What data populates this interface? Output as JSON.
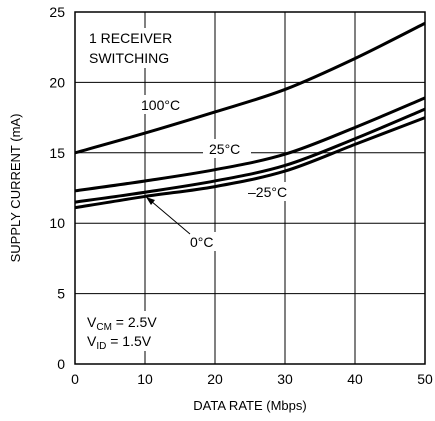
{
  "chart_data": {
    "type": "line",
    "xlabel": "DATA RATE (Mbps)",
    "ylabel": "SUPPLY CURRENT (mA)",
    "xlim": [
      0,
      50
    ],
    "ylim": [
      0,
      25
    ],
    "x_ticks": [
      0,
      10,
      20,
      30,
      40,
      50
    ],
    "y_ticks": [
      0,
      5,
      10,
      15,
      20,
      25
    ],
    "x_tick_labels": [
      "0",
      "10",
      "20",
      "30",
      "40",
      "50"
    ],
    "y_tick_labels": [
      "0",
      "5",
      "10",
      "15",
      "20",
      "25"
    ],
    "grid": true,
    "legend": "none",
    "series": [
      {
        "name": "100°C",
        "x": [
          0,
          10,
          20,
          30,
          40,
          50
        ],
        "y": [
          15.0,
          16.4,
          17.9,
          19.5,
          21.7,
          24.2
        ]
      },
      {
        "name": "25°C",
        "x": [
          0,
          10,
          20,
          30,
          40,
          50
        ],
        "y": [
          12.3,
          13.0,
          13.8,
          14.9,
          16.8,
          18.9
        ]
      },
      {
        "name": "0°C",
        "x": [
          0,
          10,
          20,
          30,
          40,
          50
        ],
        "y": [
          11.5,
          12.2,
          13.0,
          14.1,
          16.0,
          18.1
        ]
      },
      {
        "name": "–25°C",
        "x": [
          0,
          10,
          20,
          30,
          40,
          50
        ],
        "y": [
          11.1,
          11.9,
          12.6,
          13.7,
          15.6,
          17.5
        ]
      }
    ],
    "annotations": {
      "condition_line1": "1 RECEIVER",
      "condition_line2": "SWITCHING",
      "label_100": "100°C",
      "label_25": "25°C",
      "label_m25": "–25°C",
      "label_0": "0°C",
      "vcm_main": "V",
      "vcm_sub": "CM",
      "vcm_value": " = 2.5V",
      "vid_main": "V",
      "vid_sub": "ID",
      "vid_value": " = 1.5V"
    }
  }
}
